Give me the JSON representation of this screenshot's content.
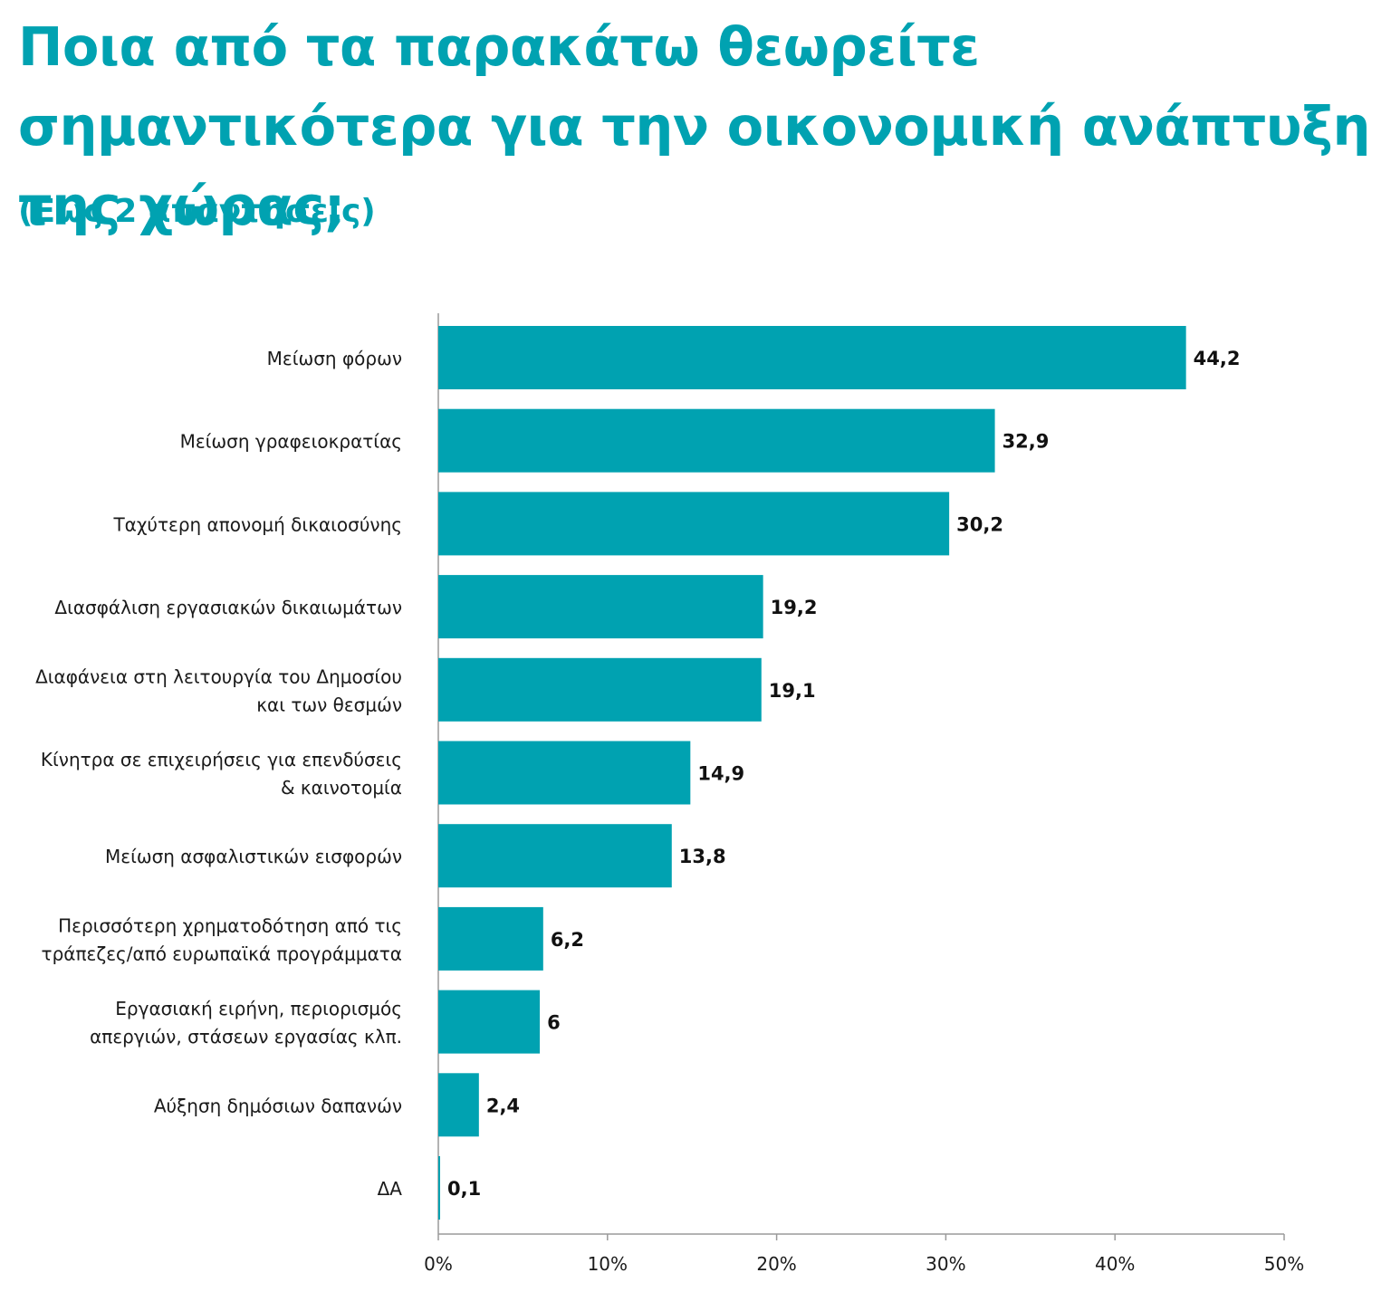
{
  "chart_data": {
    "type": "bar",
    "orientation": "horizontal",
    "title": "Ποια από τα παρακάτω θεωρείτε σημαντικότερα για την οικονομική ανάπτυξη της χώρας;",
    "subtitle": "(Εως 2 απαντήσεις)",
    "categories": [
      [
        "Μείωση φόρων"
      ],
      [
        "Μείωση γραφειοκρατίας"
      ],
      [
        "Ταχύτερη απονομή δικαιοσύνης"
      ],
      [
        "Διασφάλιση εργασιακών δικαιωμάτων"
      ],
      [
        "Διαφάνεια στη λειτουργία του Δημοσίου",
        "και των θεσμών"
      ],
      [
        "Κίνητρα σε επιχειρήσεις για επενδύσεις",
        "& καινοτομία"
      ],
      [
        "Μείωση ασφαλιστικών εισφορών"
      ],
      [
        "Περισσότερη χρηματοδότηση από τις",
        "τράπεζες/από ευρωπαϊκά προγράμματα"
      ],
      [
        "Εργασιακή ειρήνη, περιορισμός",
        "απεργιών, στάσεων εργασίας κλπ."
      ],
      [
        "Αύξηση δημόσιων δαπανών"
      ],
      [
        "ΔΑ"
      ]
    ],
    "values": [
      44.2,
      32.9,
      30.2,
      19.2,
      19.1,
      14.9,
      13.8,
      6.2,
      6,
      2.4,
      0.1
    ],
    "value_labels": [
      "44,2",
      "32,9",
      "30,2",
      "19,2",
      "19,1",
      "14,9",
      "13,8",
      "6,2",
      "6",
      "2,4",
      "0,1"
    ],
    "xlim": [
      0,
      50
    ],
    "x_ticks": [
      0,
      10,
      20,
      30,
      40,
      50
    ],
    "x_tick_labels": [
      "0%",
      "10%",
      "20%",
      "30%",
      "40%",
      "50%"
    ],
    "grid": false,
    "bar_color": "#00a2b1",
    "xlabel": "",
    "ylabel": ""
  }
}
